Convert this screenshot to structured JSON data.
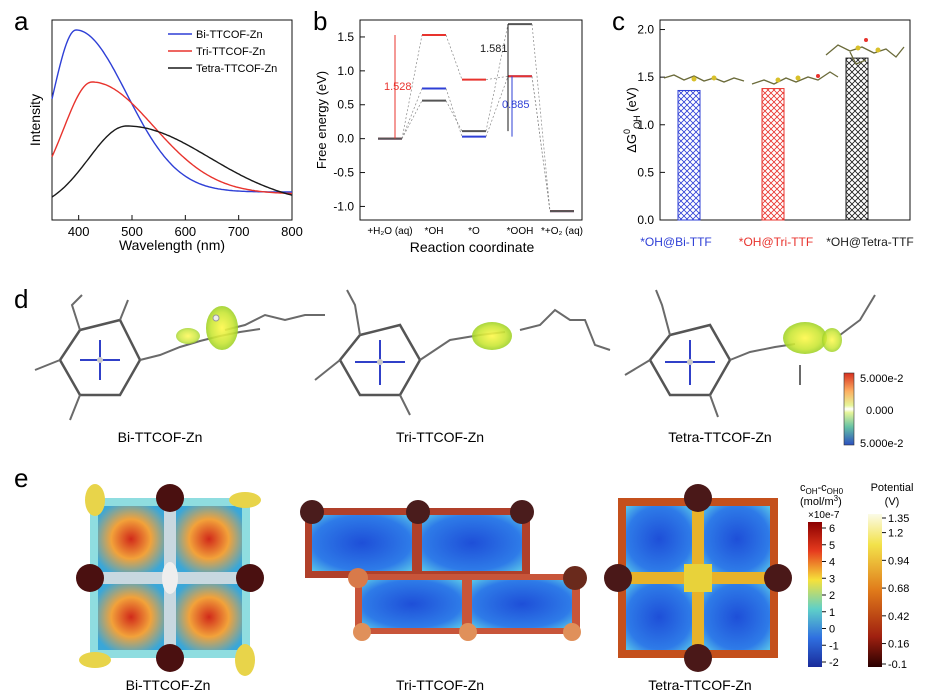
{
  "panel_letters": {
    "a": "a",
    "b": "b",
    "c": "c",
    "d": "d",
    "e": "e"
  },
  "colors": {
    "blue": "#2e3fd6",
    "red": "#e8332d",
    "black": "#1a1a1a",
    "dashed": "#888888"
  },
  "chart_data": [
    {
      "id": "a",
      "type": "line",
      "xlabel": "Wavelength (nm)",
      "ylabel": "Intensity",
      "xlim": [
        350,
        800
      ],
      "xticks": [
        400,
        500,
        600,
        700,
        800
      ],
      "series": [
        {
          "name": "Bi-TTCOF-Zn",
          "color": "#2e3fd6",
          "peak_x": 395,
          "peak_rel": 0.95,
          "tail_rel": 0.14,
          "w": 95
        },
        {
          "name": "Tri-TTCOF-Zn",
          "color": "#e8332d",
          "peak_x": 425,
          "peak_rel": 0.69,
          "tail_rel": 0.13,
          "w": 115
        },
        {
          "name": "Tetra-TTCOF-Zn",
          "color": "#1a1a1a",
          "peak_x": 490,
          "peak_rel": 0.47,
          "tail_rel": 0.07,
          "w": 155
        }
      ]
    },
    {
      "id": "b",
      "type": "line",
      "title": "",
      "xlabel": "Reaction coordinate",
      "ylabel": "Free energy (eV)",
      "ylim": [
        -1.2,
        1.75
      ],
      "yticks": [
        "1.5",
        "1.0",
        "0.5",
        "0.0",
        "-0.5",
        "-1.0"
      ],
      "ytick_values": [
        1.5,
        1.0,
        0.5,
        0.0,
        -0.5,
        -1.0
      ],
      "categories": [
        "+H₂O (aq)",
        "*OH",
        "*O",
        "*OOH",
        "*+O₂ (aq)"
      ],
      "series": [
        {
          "name": "Bi-TTF",
          "color": "#2e3fd6",
          "values": [
            0.0,
            0.74,
            0.03,
            0.92,
            -1.07
          ]
        },
        {
          "name": "Tri-TTF",
          "color": "#e8332d",
          "values": [
            0.0,
            1.528,
            0.87,
            0.92,
            -1.07
          ]
        },
        {
          "name": "Tetra-TTF",
          "color": "#555555",
          "values": [
            0.0,
            0.56,
            0.11,
            1.69,
            -1.07
          ]
        }
      ],
      "annotations": [
        {
          "text": "1.528",
          "color": "#e8332d"
        },
        {
          "text": "1.581",
          "color": "#1a1a1a"
        },
        {
          "text": "0.885",
          "color": "#2e3fd6"
        }
      ]
    },
    {
      "id": "c",
      "type": "bar",
      "ylabel": "ΔG⁰OH (eV)",
      "ylim": [
        0,
        2.1
      ],
      "yticks": [
        "0.0",
        "0.5",
        "1.0",
        "1.5",
        "2.0"
      ],
      "ytick_values": [
        0.0,
        0.5,
        1.0,
        1.5,
        2.0
      ],
      "categories": [
        "*OH@Bi-TTF",
        "*OH@Tri-TTF",
        "*OH@Tetra-TTF"
      ],
      "values": [
        1.36,
        1.38,
        1.7
      ],
      "bar_colors": [
        "#2e3fd6",
        "#e8332d",
        "#1a1a1a"
      ]
    }
  ],
  "panel_d": {
    "labels": [
      "Bi-TTCOF-Zn",
      "Tri-TTCOF-Zn",
      "Tetra-TTCOF-Zn"
    ],
    "colorbar": {
      "top": "5.000e-2",
      "mid": "0.000",
      "bottom": "5.000e-2"
    }
  },
  "panel_e": {
    "labels": [
      "Bi-TTCOF-Zn",
      "Tri-TTCOF-Zn",
      "Tetra-TTCOF-Zn"
    ],
    "conc_bar": {
      "title1": "c",
      "title1_sub1": "OH",
      "title1_mid": "-c",
      "title1_sub2": "OH0",
      "title2": "(mol/m",
      "title2_sup": "3",
      "title2_end": ")",
      "multiplier": "×10e-7",
      "ticks": [
        "6",
        "5",
        "4",
        "3",
        "2",
        "1",
        "0",
        "-1",
        "-2"
      ]
    },
    "pot_bar": {
      "title1": "Potential",
      "title2": "(V)",
      "ticks": [
        "1.35",
        "1.2",
        "0.94",
        "0.68",
        "0.42",
        "0.16",
        "-0.1"
      ]
    }
  }
}
